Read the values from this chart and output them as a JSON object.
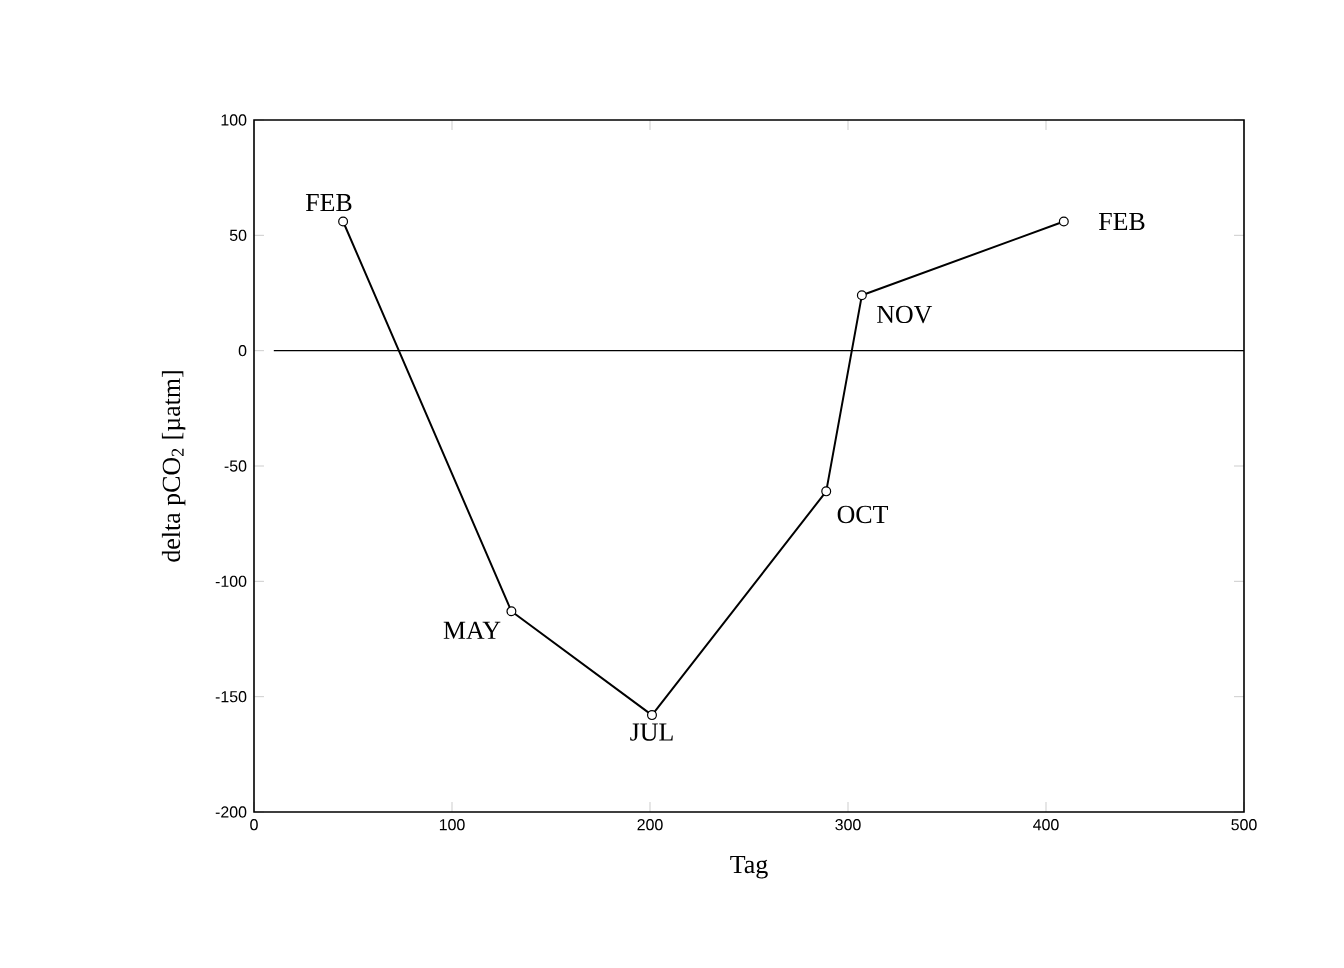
{
  "chart_data": {
    "type": "line",
    "xlabel": "Tag",
    "ylabel": "delta pCO$_{2}$ [µatm]",
    "x": [
      45,
      130,
      201,
      289,
      307,
      409
    ],
    "series": [
      {
        "color": "#000000",
        "values": [
          56,
          -113,
          -158,
          -61,
          24,
          56
        ]
      }
    ],
    "xlim": [
      0,
      500
    ],
    "xticks": [
      0,
      100,
      200,
      300,
      400,
      500
    ],
    "ylim": [
      -200,
      100
    ],
    "yticks": [
      -200,
      -150,
      -100,
      -50,
      0,
      50,
      100
    ],
    "marker": "circle",
    "line_style": "solid",
    "grid": false,
    "ref_lines": [
      {
        "axis": "y",
        "value": 0,
        "color": "#000000"
      }
    ],
    "annotations": [
      {
        "text": "FEB",
        "x": 45,
        "y": 56
      },
      {
        "text": "MAY",
        "x": 130,
        "y": -113
      },
      {
        "text": "JUL",
        "x": 201,
        "y": -158
      },
      {
        "text": "OCT",
        "x": 289,
        "y": -61
      },
      {
        "text": "NOV",
        "x": 307,
        "y": 24
      },
      {
        "text": "FEB",
        "x": 409,
        "y": 56
      }
    ]
  }
}
